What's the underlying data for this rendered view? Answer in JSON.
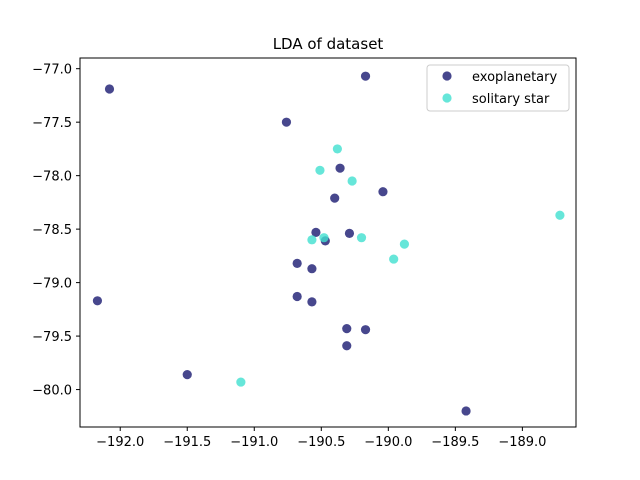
{
  "chart_data": {
    "type": "scatter",
    "title": "LDA of dataset",
    "xlabel": "",
    "ylabel": "",
    "xlim": [
      -192.3,
      -188.6
    ],
    "ylim": [
      -80.35,
      -76.9
    ],
    "xticks": [
      -192.0,
      -191.5,
      -191.0,
      -190.5,
      -190.0,
      -189.5,
      -189.0
    ],
    "xtick_labels": [
      "−192.0",
      "−191.5",
      "−191.0",
      "−190.5",
      "−190.0",
      "−189.5",
      "−189.0"
    ],
    "yticks": [
      -77.0,
      -77.5,
      -78.0,
      -78.5,
      -79.0,
      -79.5,
      -80.0
    ],
    "ytick_labels": [
      "−77.0",
      "−77.5",
      "−78.0",
      "−78.5",
      "−79.0",
      "−79.5",
      "−80.0"
    ],
    "grid": false,
    "legend_position": "top-right",
    "series": [
      {
        "name": "exoplanetary",
        "color": "#191970",
        "points": [
          [
            -192.08,
            -77.19
          ],
          [
            -190.17,
            -77.07
          ],
          [
            -190.76,
            -77.5
          ],
          [
            -190.36,
            -77.93
          ],
          [
            -190.04,
            -78.15
          ],
          [
            -190.4,
            -78.21
          ],
          [
            -190.54,
            -78.53
          ],
          [
            -190.29,
            -78.54
          ],
          [
            -190.47,
            -78.61
          ],
          [
            -190.68,
            -78.82
          ],
          [
            -190.57,
            -78.87
          ],
          [
            -192.17,
            -79.17
          ],
          [
            -190.68,
            -79.13
          ],
          [
            -190.57,
            -79.18
          ],
          [
            -190.31,
            -79.43
          ],
          [
            -190.17,
            -79.44
          ],
          [
            -190.31,
            -79.59
          ],
          [
            -191.5,
            -79.86
          ],
          [
            -189.42,
            -80.2
          ]
        ]
      },
      {
        "name": "solitary star",
        "color": "#40E0D0",
        "points": [
          [
            -190.38,
            -77.75
          ],
          [
            -190.51,
            -77.95
          ],
          [
            -190.27,
            -78.05
          ],
          [
            -188.72,
            -78.37
          ],
          [
            -190.57,
            -78.6
          ],
          [
            -190.48,
            -78.58
          ],
          [
            -190.2,
            -78.58
          ],
          [
            -189.88,
            -78.64
          ],
          [
            -189.96,
            -78.78
          ],
          [
            -191.1,
            -79.93
          ]
        ]
      }
    ]
  }
}
